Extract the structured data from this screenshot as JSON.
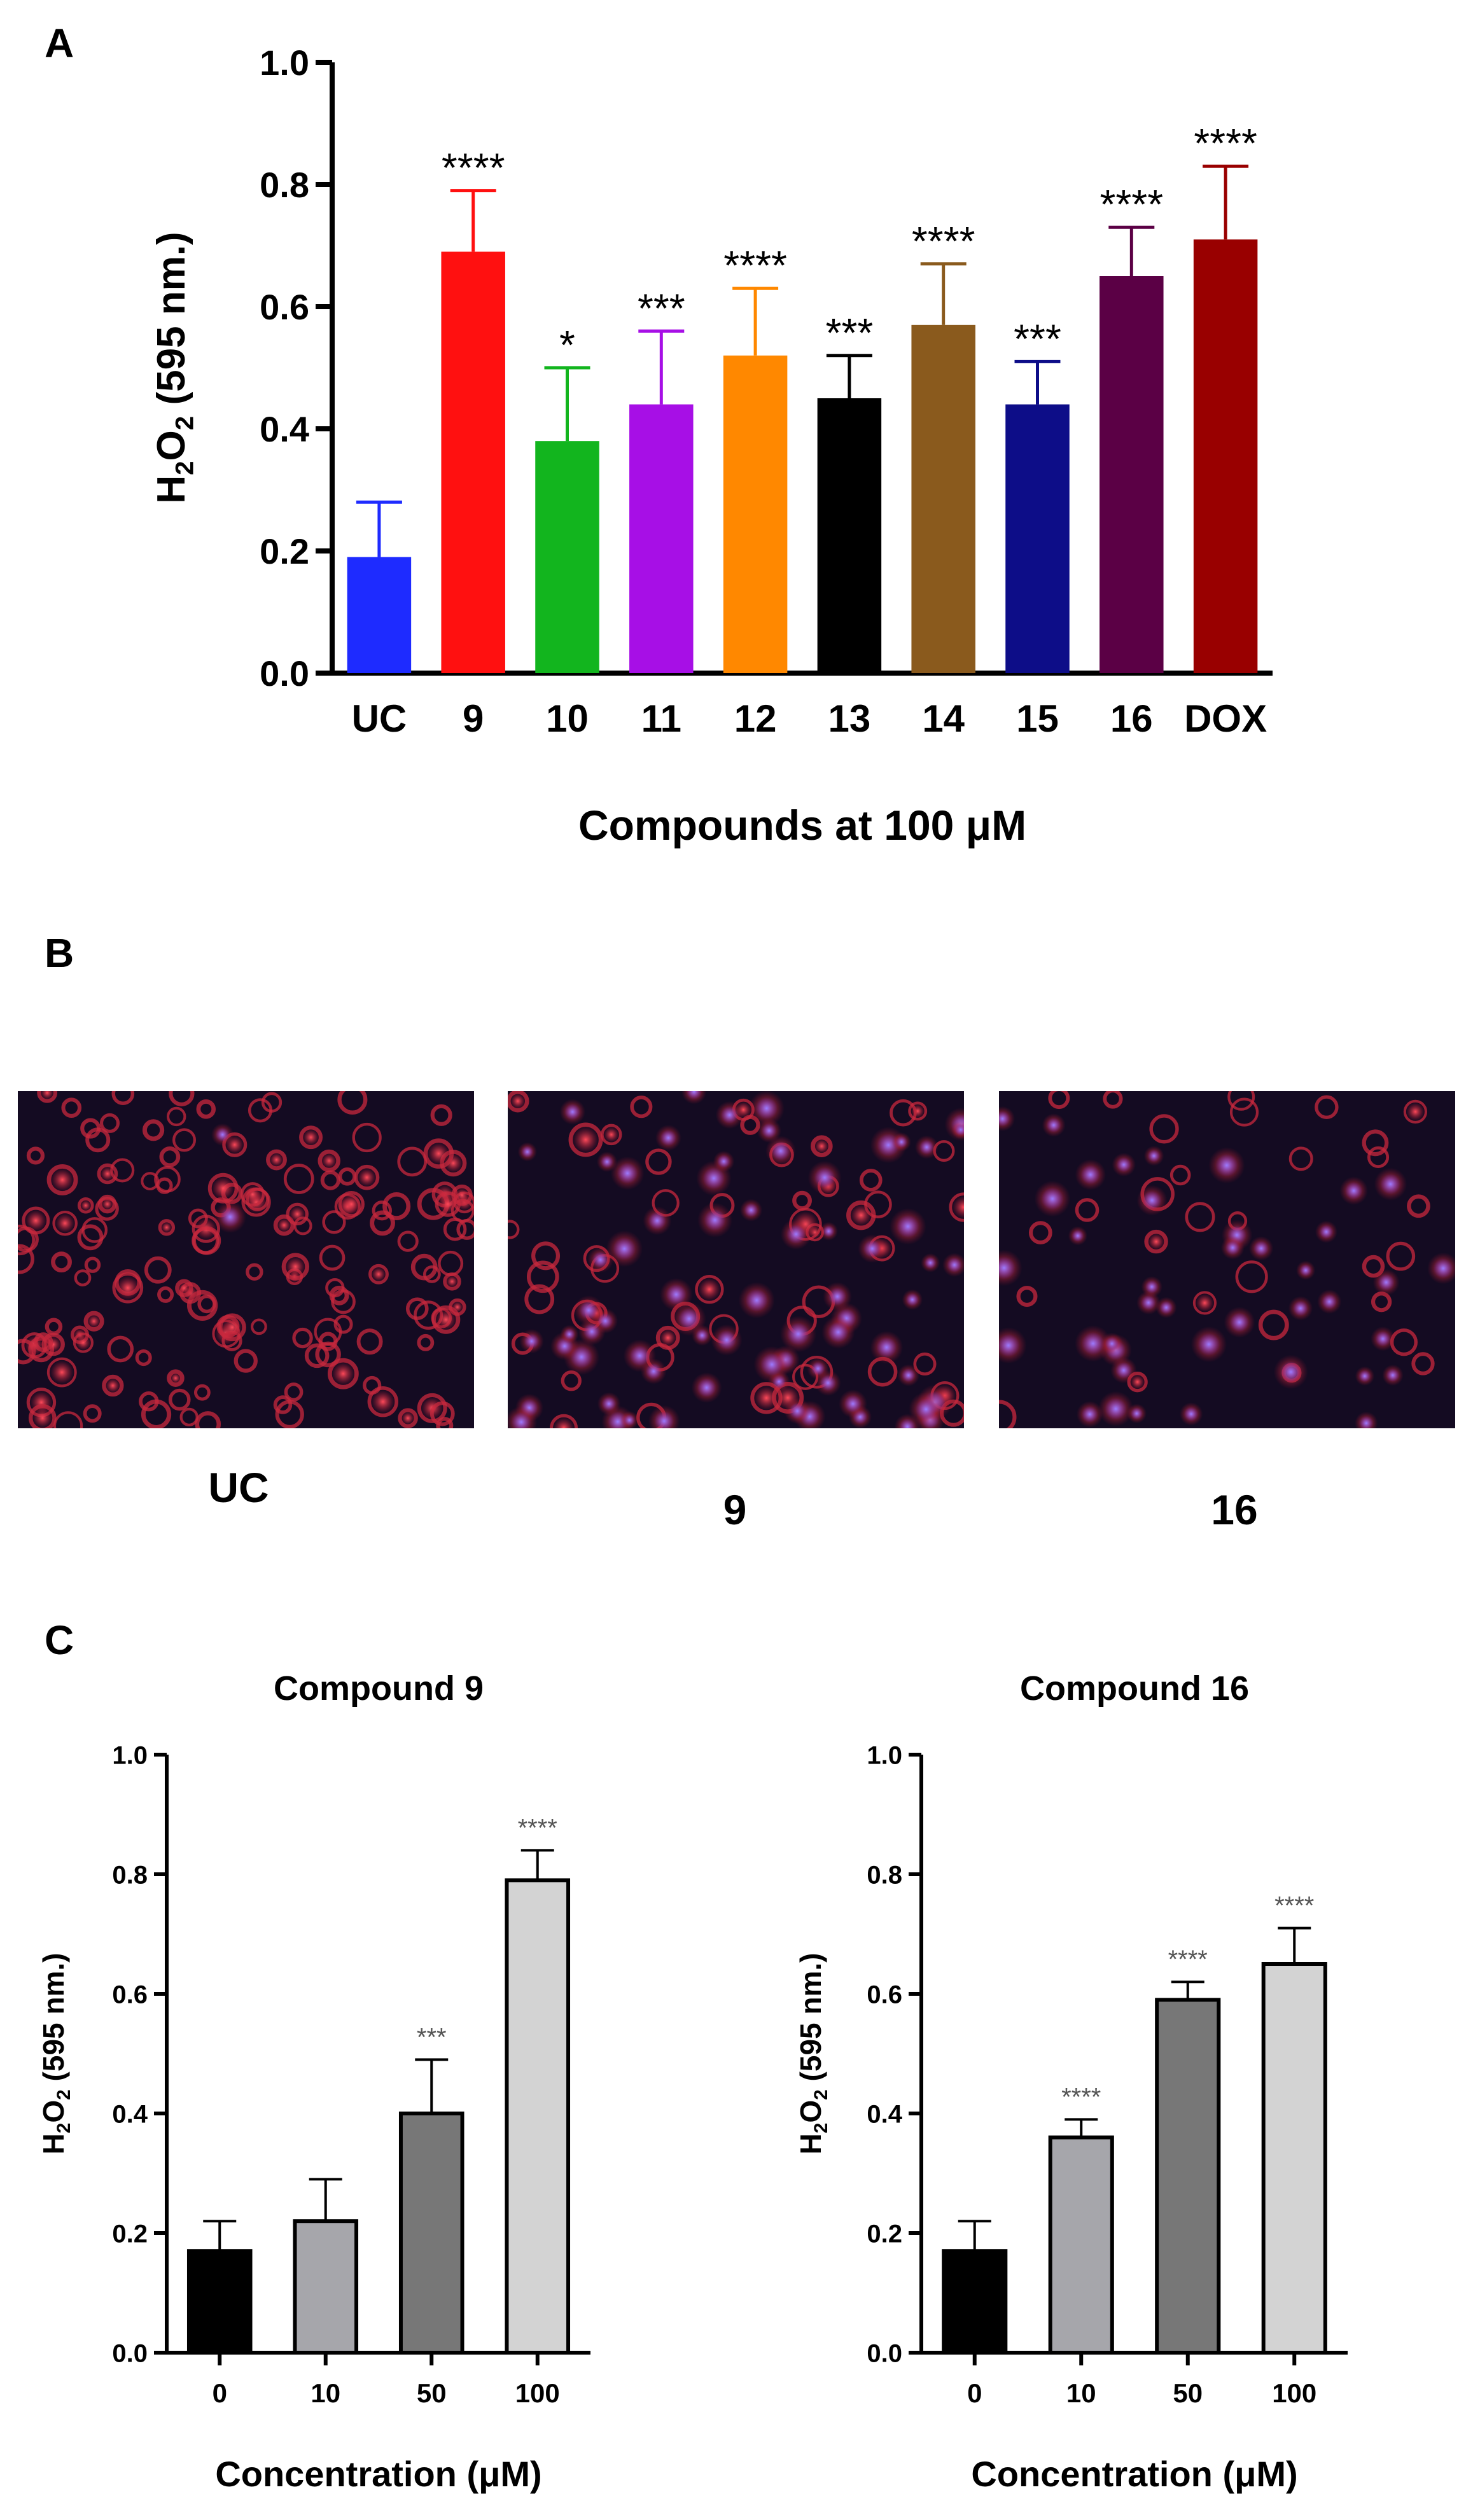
{
  "panels": {
    "a_label": "A",
    "b_label": "B",
    "c_label": "C"
  },
  "images": [
    {
      "caption": "UC"
    },
    {
      "caption": "9"
    },
    {
      "caption": "16"
    }
  ],
  "colors": {
    "image_background": "#140b22",
    "cell_red": "#e0303a",
    "nucleus_blue": "#6a4cff"
  },
  "chart_data": [
    {
      "type": "bar",
      "panel": "A",
      "categories": [
        "UC",
        "9",
        "10",
        "11",
        "12",
        "13",
        "14",
        "15",
        "16",
        "DOX"
      ],
      "values": [
        0.19,
        0.69,
        0.38,
        0.44,
        0.52,
        0.45,
        0.57,
        0.44,
        0.65,
        0.71
      ],
      "errors": [
        0.09,
        0.1,
        0.12,
        0.12,
        0.11,
        0.07,
        0.1,
        0.07,
        0.08,
        0.12
      ],
      "significance": [
        "",
        "****",
        "*",
        "***",
        "****",
        "***",
        "****",
        "***",
        "****",
        "****"
      ],
      "colors": [
        "#1e2bff",
        "#ff1010",
        "#12b51e",
        "#a70fe6",
        "#ff8800",
        "#000000",
        "#8a5a1d",
        "#0d0d88",
        "#5b0045",
        "#990000"
      ],
      "title": "",
      "ylabel": "H2O2 (595 nm.)",
      "ylabel_main": "H",
      "ylabel_sub1": "2",
      "ylabel_mid": "O",
      "ylabel_sub2": "2",
      "ylabel_rest": " (595 nm.)",
      "xlabel": "Compounds at 100 μM",
      "ylim": [
        0,
        1.0
      ],
      "yticks": [
        "0.0",
        "0.2",
        "0.4",
        "0.6",
        "0.8",
        "1.0"
      ]
    },
    {
      "type": "bar",
      "panel": "C-left",
      "categories": [
        "0",
        "10",
        "50",
        "100"
      ],
      "values": [
        0.17,
        0.22,
        0.4,
        0.79
      ],
      "errors": [
        0.05,
        0.07,
        0.09,
        0.05
      ],
      "significance": [
        "",
        "",
        "***",
        "****"
      ],
      "colors": [
        "#000000",
        "#a6a6ab",
        "#777777",
        "#d3d3d3"
      ],
      "title": "Compound 9",
      "ylabel": "H2O2 (595 nm.)",
      "ylabel_main": "H",
      "ylabel_sub1": "2",
      "ylabel_mid": "O",
      "ylabel_sub2": "2",
      "ylabel_rest": " (595 nm.)",
      "xlabel": "Concentration (μM)",
      "ylim": [
        0,
        1.0
      ],
      "yticks": [
        "0.0",
        "0.2",
        "0.4",
        "0.6",
        "0.8",
        "1.0"
      ]
    },
    {
      "type": "bar",
      "panel": "C-right",
      "categories": [
        "0",
        "10",
        "50",
        "100"
      ],
      "values": [
        0.17,
        0.36,
        0.59,
        0.65
      ],
      "errors": [
        0.05,
        0.03,
        0.03,
        0.06
      ],
      "significance": [
        "",
        "****",
        "****",
        "****"
      ],
      "colors": [
        "#000000",
        "#a6a6ab",
        "#777777",
        "#d3d3d3"
      ],
      "title": "Compound 16",
      "ylabel": "H2O2 (595 nm.)",
      "ylabel_main": "H",
      "ylabel_sub1": "2",
      "ylabel_mid": "O",
      "ylabel_sub2": "2",
      "ylabel_rest": " (595 nm.)",
      "xlabel": "Concentration (μM)",
      "ylim": [
        0,
        1.0
      ],
      "yticks": [
        "0.0",
        "0.2",
        "0.4",
        "0.6",
        "0.8",
        "1.0"
      ]
    }
  ]
}
